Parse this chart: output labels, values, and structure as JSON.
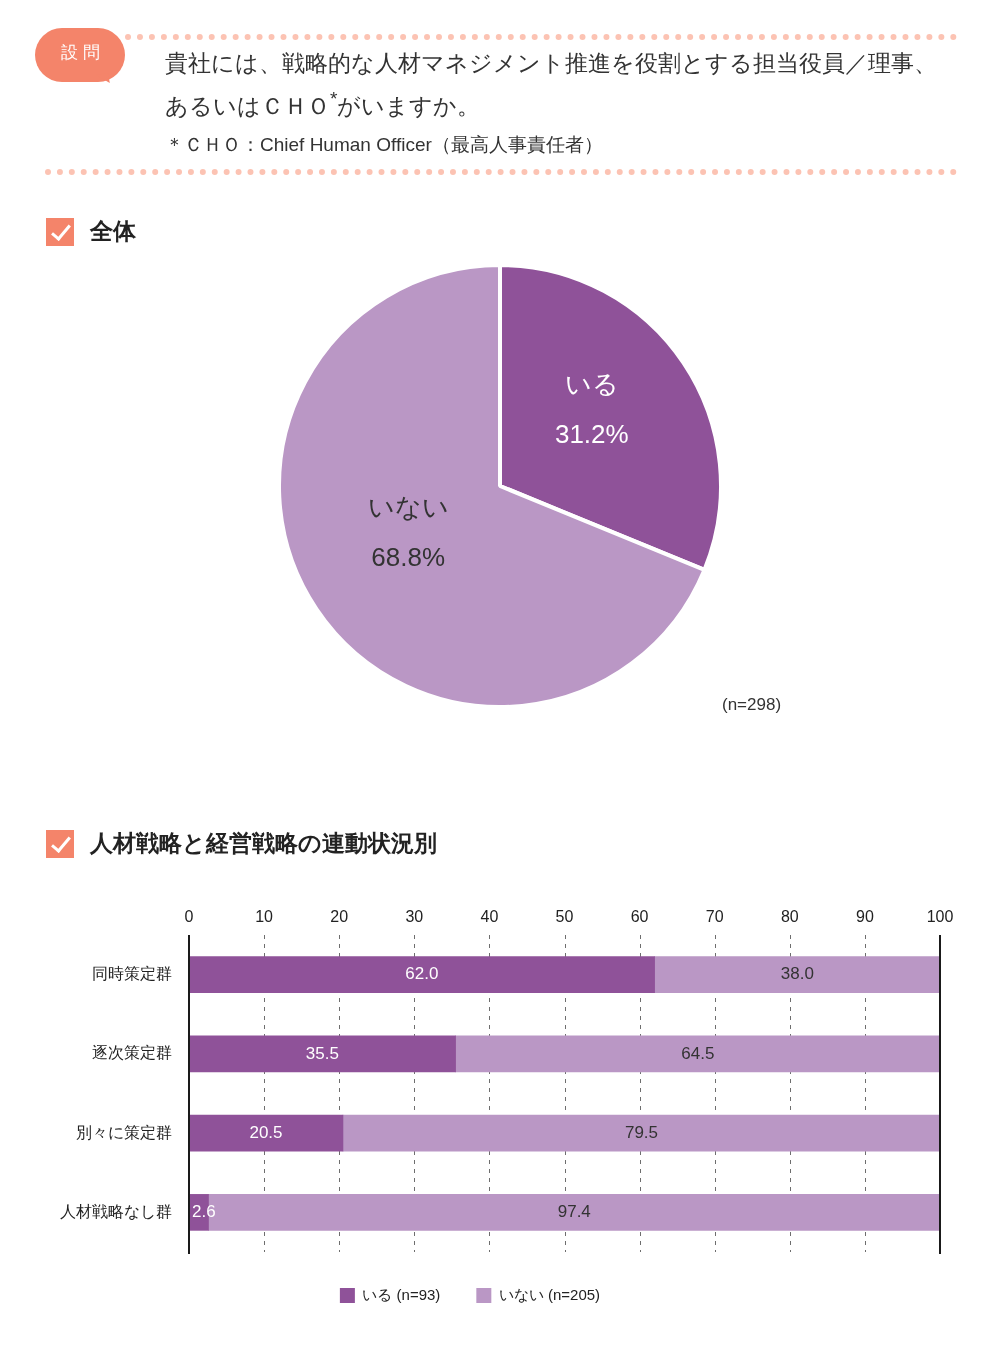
{
  "chart_data": [
    {
      "type": "pie",
      "title": "全体",
      "categories": [
        "いる",
        "いない"
      ],
      "values": [
        31.2,
        68.8
      ],
      "colors": [
        "#8f5299",
        "#ba97c5"
      ],
      "value_labels": [
        "31.2%",
        "68.8%"
      ],
      "annotations": [
        "設問",
        "貴社には、戦略的な人材マネジメント推進を役割とする担当役員／理事、あるいはＣＨＯ$^{*}$がいますか。",
        "＊ＣＨＯ：Chief Human Officer（最高人事責任者）",
        "(n=298)"
      ]
    },
    {
      "type": "bar",
      "title": "人材戦略と経営戦略の連動状況別",
      "orientation": "horizontal",
      "stacked": true,
      "categories": [
        "同時策定群",
        "逐次策定群",
        "別々に策定群",
        "人材戦略なし群"
      ],
      "series": [
        {
          "name": "いる (n=93)",
          "color": "#8f5299",
          "values": [
            62.0,
            35.5,
            20.5,
            2.6
          ],
          "value_labels": [
            "62.0",
            "35.5",
            "20.5",
            "2.6"
          ]
        },
        {
          "name": "いない (n=205)",
          "color": "#ba97c5",
          "values": [
            38.0,
            64.5,
            79.5,
            97.4
          ],
          "value_labels": [
            "38.0",
            "64.5",
            "79.5",
            "97.4"
          ]
        }
      ],
      "xlim": [
        0,
        100
      ],
      "xticks": [
        0,
        10,
        20,
        30,
        40,
        50,
        60,
        70,
        80,
        90,
        100
      ],
      "grid": "x",
      "legend": "bottom"
    }
  ]
}
